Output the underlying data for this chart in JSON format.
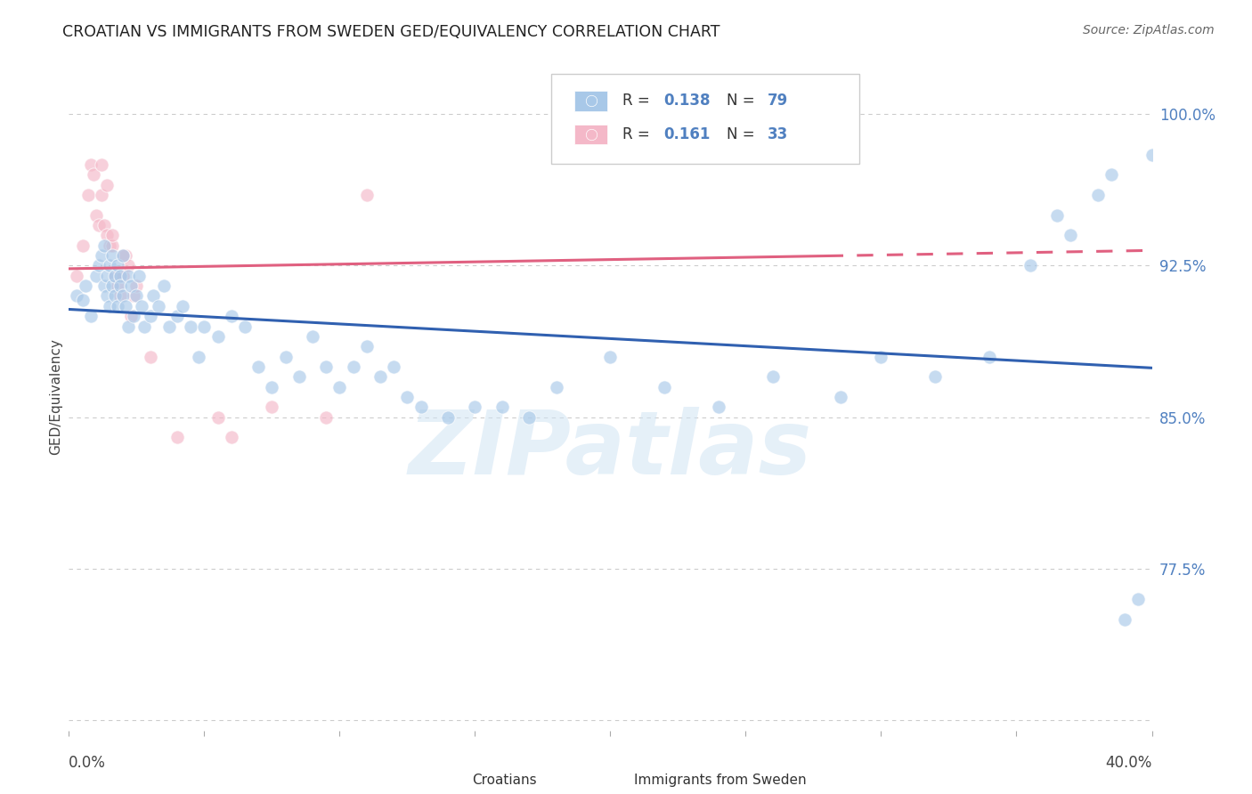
{
  "title": "CROATIAN VS IMMIGRANTS FROM SWEDEN GED/EQUIVALENCY CORRELATION CHART",
  "source": "Source: ZipAtlas.com",
  "ylabel": "GED/Equivalency",
  "legend_R_blue": "0.138",
  "legend_N_blue": "79",
  "legend_R_pink": "0.161",
  "legend_N_pink": "33",
  "blue_color": "#a8c8e8",
  "pink_color": "#f4b8c8",
  "blue_line_color": "#3060b0",
  "pink_line_color": "#e06080",
  "dot_size": 120,
  "dot_alpha": 0.65,
  "xmin": 0.0,
  "xmax": 0.4,
  "ymin": 0.695,
  "ymax": 1.025,
  "ytick_positions": [
    0.775,
    0.85,
    0.925,
    1.0
  ],
  "ytick_labels": [
    "77.5%",
    "85.0%",
    "92.5%",
    "100.0%"
  ],
  "grid_yticks": [
    0.7,
    0.775,
    0.85,
    0.925,
    1.0
  ],
  "blue_x": [
    0.003,
    0.005,
    0.006,
    0.008,
    0.01,
    0.011,
    0.012,
    0.013,
    0.013,
    0.014,
    0.014,
    0.015,
    0.015,
    0.016,
    0.016,
    0.017,
    0.017,
    0.018,
    0.018,
    0.019,
    0.019,
    0.02,
    0.02,
    0.021,
    0.022,
    0.022,
    0.023,
    0.024,
    0.025,
    0.026,
    0.027,
    0.028,
    0.03,
    0.031,
    0.033,
    0.035,
    0.037,
    0.04,
    0.042,
    0.045,
    0.048,
    0.05,
    0.055,
    0.06,
    0.065,
    0.07,
    0.075,
    0.08,
    0.085,
    0.09,
    0.095,
    0.1,
    0.105,
    0.11,
    0.115,
    0.12,
    0.125,
    0.13,
    0.14,
    0.15,
    0.16,
    0.17,
    0.18,
    0.2,
    0.22,
    0.24,
    0.26,
    0.285,
    0.3,
    0.32,
    0.34,
    0.355,
    0.365,
    0.37,
    0.38,
    0.385,
    0.39,
    0.395,
    0.4
  ],
  "blue_y": [
    0.91,
    0.908,
    0.915,
    0.9,
    0.92,
    0.925,
    0.93,
    0.915,
    0.935,
    0.92,
    0.91,
    0.905,
    0.925,
    0.93,
    0.915,
    0.92,
    0.91,
    0.905,
    0.925,
    0.92,
    0.915,
    0.91,
    0.93,
    0.905,
    0.895,
    0.92,
    0.915,
    0.9,
    0.91,
    0.92,
    0.905,
    0.895,
    0.9,
    0.91,
    0.905,
    0.915,
    0.895,
    0.9,
    0.905,
    0.895,
    0.88,
    0.895,
    0.89,
    0.9,
    0.895,
    0.875,
    0.865,
    0.88,
    0.87,
    0.89,
    0.875,
    0.865,
    0.875,
    0.885,
    0.87,
    0.875,
    0.86,
    0.855,
    0.85,
    0.855,
    0.855,
    0.85,
    0.865,
    0.88,
    0.865,
    0.855,
    0.87,
    0.86,
    0.88,
    0.87,
    0.88,
    0.925,
    0.95,
    0.94,
    0.96,
    0.97,
    0.75,
    0.76,
    0.98
  ],
  "pink_x": [
    0.003,
    0.005,
    0.007,
    0.008,
    0.009,
    0.01,
    0.011,
    0.012,
    0.013,
    0.014,
    0.015,
    0.016,
    0.017,
    0.018,
    0.019,
    0.02,
    0.021,
    0.022,
    0.023,
    0.024,
    0.012,
    0.014,
    0.016,
    0.02,
    0.025,
    0.03,
    0.04,
    0.055,
    0.06,
    0.075,
    0.095,
    0.11,
    0.28
  ],
  "pink_y": [
    0.92,
    0.935,
    0.96,
    0.975,
    0.97,
    0.95,
    0.945,
    0.96,
    0.945,
    0.94,
    0.935,
    0.935,
    0.92,
    0.915,
    0.91,
    0.92,
    0.93,
    0.925,
    0.9,
    0.91,
    0.975,
    0.965,
    0.94,
    0.93,
    0.915,
    0.88,
    0.84,
    0.85,
    0.84,
    0.855,
    0.85,
    0.96,
    1.0
  ],
  "watermark": "ZIPatlas",
  "bg_color": "#ffffff",
  "grid_color": "#cccccc",
  "label_color": "#5080c0",
  "title_color": "#222222",
  "axis_label_color": "#444444"
}
